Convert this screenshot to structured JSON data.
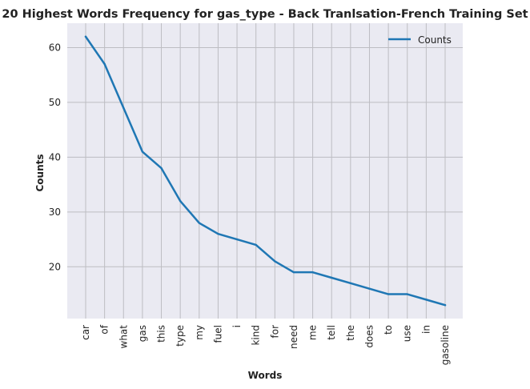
{
  "chart_data": {
    "type": "line",
    "title": "20 Highest Words Frequency for gas_type - Back Tranlsation-French Training Set",
    "xlabel": "Words",
    "ylabel": "Counts",
    "categories": [
      "car",
      "of",
      "what",
      "gas",
      "this",
      "type",
      "my",
      "fuel",
      "i",
      "kind",
      "for",
      "need",
      "me",
      "tell",
      "the",
      "does",
      "to",
      "use",
      "in",
      "gasoline"
    ],
    "series": [
      {
        "name": "Counts",
        "values": [
          62,
          57,
          49,
          41,
          38,
          32,
          28,
          26,
          25,
          24,
          21,
          19,
          19,
          18,
          17,
          16,
          15,
          15,
          14,
          13
        ]
      }
    ],
    "ylim": [
      10.55,
      64.45
    ],
    "yticks": [
      20,
      30,
      40,
      50,
      60
    ],
    "grid": true,
    "legend": "top-right",
    "colors": {
      "background": "#eaeaf2",
      "line": "#1f77b4",
      "grid": "#bdbdc2"
    }
  }
}
